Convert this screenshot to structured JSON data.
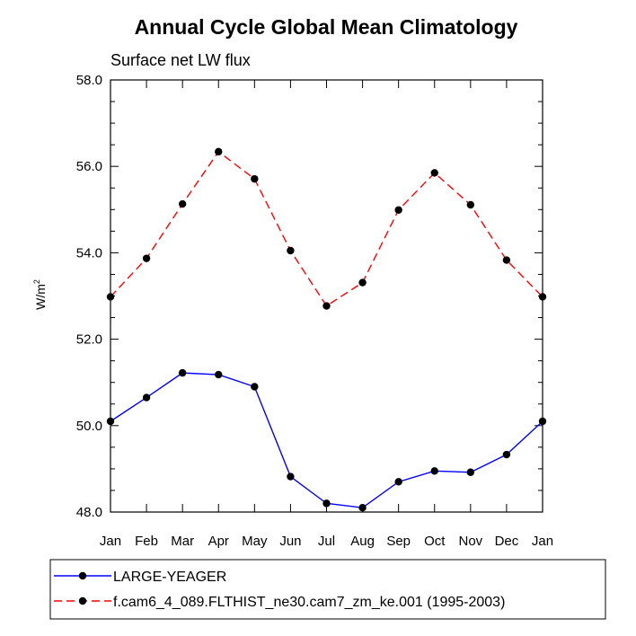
{
  "chart_data": {
    "type": "line",
    "title": "Annual Cycle Global Mean Climatology",
    "subtitle": "Surface net LW flux",
    "ylabel_base": "W/m",
    "ylabel_sup": "2",
    "categories": [
      "Jan",
      "Feb",
      "Mar",
      "Apr",
      "May",
      "Jun",
      "Jul",
      "Aug",
      "Sep",
      "Oct",
      "Nov",
      "Dec",
      "Jan"
    ],
    "ylim": [
      48.0,
      58.0
    ],
    "yticks": [
      "48.0",
      "50.0",
      "52.0",
      "54.0",
      "56.0",
      "58.0"
    ],
    "grid": false,
    "legend_position": "bottom",
    "series": [
      {
        "name": "LARGE-YEAGER",
        "color": "#0000ff",
        "dash": "solid",
        "marker": "filled-circle",
        "values": [
          50.1,
          50.65,
          51.22,
          51.18,
          50.9,
          48.82,
          48.2,
          48.1,
          48.7,
          48.95,
          48.92,
          49.33,
          50.1
        ]
      },
      {
        "name": "f.cam6_4_089.FLTHIST_ne30.cam7_zm_ke.001 (1995-2003)",
        "color": "#ff0000",
        "dash": "dashed",
        "marker": "filled-circle",
        "values": [
          52.98,
          53.87,
          55.13,
          56.34,
          55.71,
          54.05,
          52.77,
          53.31,
          54.99,
          55.85,
          55.11,
          53.83,
          52.98
        ]
      }
    ]
  }
}
